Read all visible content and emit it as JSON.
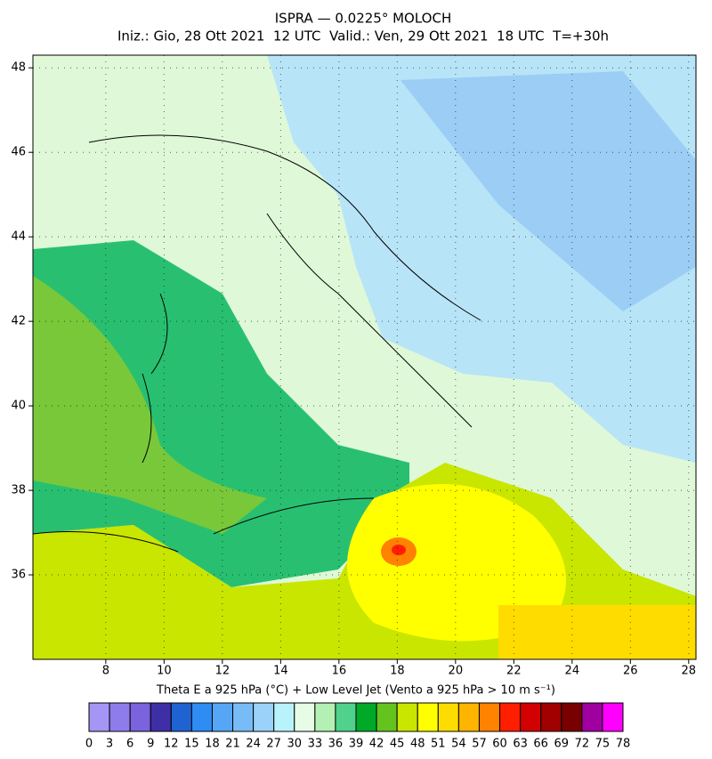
{
  "map": {
    "title": "ISPRA — 0.0225° MOLOCH",
    "subtitle": "Iniz.: Gio, 28 Ott 2021  12 UTC  Valid.: Ven, 29 Ott 2021  18 UTC  T=+30h",
    "xlim": [
      5.5,
      28.25
    ],
    "ylim": [
      34,
      48.3
    ],
    "xticks": [
      8,
      10,
      12,
      14,
      16,
      18,
      20,
      22,
      24,
      26,
      28
    ],
    "yticks": [
      36,
      38,
      40,
      42,
      44,
      46,
      48
    ],
    "grid": true
  },
  "colorbar": {
    "label": "Theta E a 925 hPa (°C) + Low Level Jet (Vento a 925 hPa > 10 m s⁻¹)",
    "levels": [
      0,
      3,
      6,
      9,
      12,
      15,
      18,
      21,
      24,
      27,
      30,
      33,
      36,
      39,
      42,
      45,
      48,
      51,
      54,
      57,
      60,
      63,
      66,
      69,
      72,
      75,
      78
    ],
    "colors": [
      "#a596f5",
      "#8f7ceb",
      "#7a63dc",
      "#3f2fa6",
      "#1f63d2",
      "#2f8cf2",
      "#56a6f5",
      "#78bcf7",
      "#9ad2f9",
      "#b8f2fa",
      "#e6fce6",
      "#b4f0b4",
      "#50d28c",
      "#00aa28",
      "#64c31e",
      "#c8e600",
      "#ffff00",
      "#ffdc00",
      "#ffb400",
      "#ff8200",
      "#ff1e00",
      "#d20000",
      "#a00000",
      "#780000",
      "#a000a0",
      "#ff00ff"
    ]
  }
}
